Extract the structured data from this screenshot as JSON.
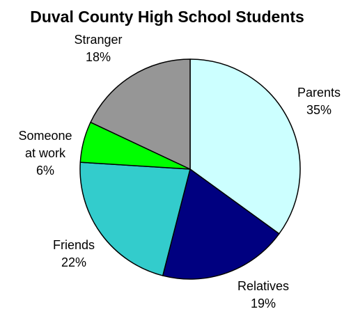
{
  "chart_data": {
    "type": "pie",
    "title": "Duval County High School Students",
    "unit": "%",
    "start_angle_deg": 0,
    "direction": "clockwise",
    "slices": [
      {
        "label_lines": [
          "Parents"
        ],
        "value": 35,
        "value_label": "35%",
        "color": "#ccffff"
      },
      {
        "label_lines": [
          "Relatives"
        ],
        "value": 19,
        "value_label": "19%",
        "color": "#000080"
      },
      {
        "label_lines": [
          "Friends"
        ],
        "value": 22,
        "value_label": "22%",
        "color": "#33cccc"
      },
      {
        "label_lines": [
          "Someone",
          "at work"
        ],
        "value": 6,
        "value_label": "6%",
        "color": "#00ff00"
      },
      {
        "label_lines": [
          "Stranger"
        ],
        "value": 18,
        "value_label": "18%",
        "color": "#969696"
      }
    ],
    "slice_border_color": "#000000",
    "legend": "none"
  }
}
